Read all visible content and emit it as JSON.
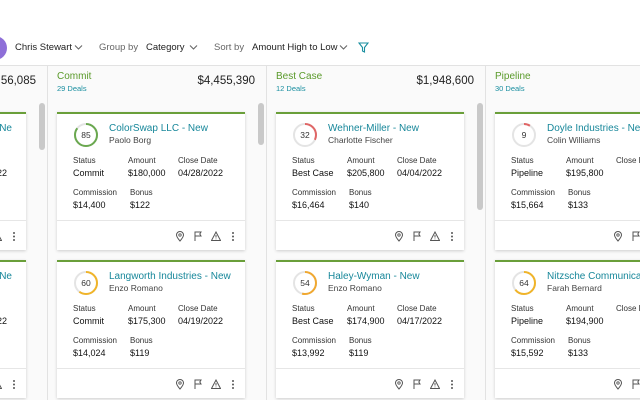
{
  "top_bar": {
    "user": "Chris Stewart",
    "group_by_label": "Group by",
    "group_by_value": "Category",
    "sort_by_label": "Sort by",
    "sort_by_value": "Amount High to Low"
  },
  "labels": {
    "status": "Status",
    "amount": "Amount",
    "close_date": "Close Date",
    "commission": "Commission",
    "bonus": "Bonus"
  },
  "columns": [
    {
      "total": "56,085",
      "cards": [
        {
          "title": "Ne",
          "close_date": "22"
        },
        {
          "title": "Ne",
          "close_date": "22"
        }
      ]
    },
    {
      "name": "Commit",
      "deals": "29 Deals",
      "total": "$4,455,390",
      "cards": [
        {
          "score": 85,
          "ring_color": "#6aa84f",
          "title": "ColorSwap LLC - New",
          "owner": "Paolo Borg",
          "status": "Commit",
          "amount": "$180,000",
          "close_date": "04/28/2022",
          "commission": "$14,400",
          "bonus": "$122"
        },
        {
          "score": 60,
          "ring_color": "#f0b429",
          "title": "Langworth Industries - New",
          "owner": "Enzo Romano",
          "status": "Commit",
          "amount": "$175,300",
          "close_date": "04/19/2022",
          "commission": "$14,024",
          "bonus": "$119"
        }
      ]
    },
    {
      "name": "Best Case",
      "deals": "12 Deals",
      "total": "$1,948,600",
      "cards": [
        {
          "score": 32,
          "ring_color": "#e06666",
          "title": "Wehner-Miller - New",
          "owner": "Charlotte Fischer",
          "status": "Best Case",
          "amount": "$205,800",
          "close_date": "04/04/2022",
          "commission": "$16,464",
          "bonus": "$140"
        },
        {
          "score": 54,
          "ring_color": "#f0a830",
          "title": "Haley-Wyman - New",
          "owner": "Enzo Romano",
          "status": "Best Case",
          "amount": "$174,900",
          "close_date": "04/17/2022",
          "commission": "$13,992",
          "bonus": "$119"
        }
      ]
    },
    {
      "name": "Pipeline",
      "deals": "30 Deals",
      "cards": [
        {
          "score": 9,
          "ring_color": "#e06666",
          "title": "Doyle Industries - New",
          "owner": "Colin Williams",
          "status": "Pipeline",
          "amount": "$195,800",
          "commission": "$15,664",
          "bonus": "$133"
        },
        {
          "score": 64,
          "ring_color": "#f0b429",
          "title": "Nitzsche Communications - New",
          "owner": "Farah Bernard",
          "status": "Pipeline",
          "amount": "$194,900",
          "commission": "$15,592",
          "bonus": "$133"
        }
      ]
    }
  ]
}
